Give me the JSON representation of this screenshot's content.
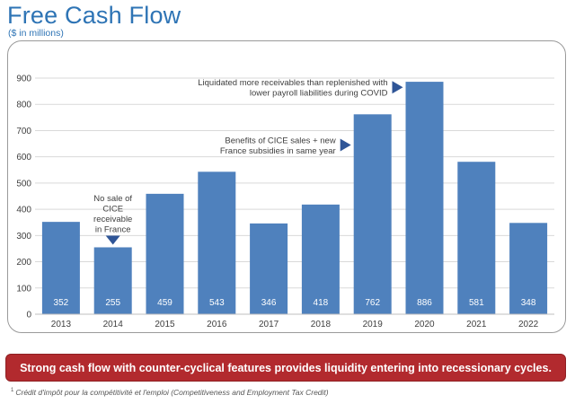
{
  "header": {
    "title": "Free Cash Flow",
    "subtitle": "($ in millions)"
  },
  "chart_data": {
    "type": "bar",
    "categories": [
      "2013",
      "2014",
      "2015",
      "2016",
      "2017",
      "2018",
      "2019",
      "2020",
      "2021",
      "2022"
    ],
    "values": [
      352,
      255,
      459,
      543,
      346,
      418,
      762,
      886,
      581,
      348
    ],
    "data_labels": [
      "352",
      "255",
      "459",
      "543",
      "346",
      "418",
      "762",
      "886",
      "581",
      "348"
    ],
    "y_ticks": [
      "0",
      "100",
      "200",
      "300",
      "400",
      "500",
      "600",
      "700",
      "800",
      "900"
    ],
    "ylim": [
      0,
      900
    ],
    "grid": true,
    "bar_color": "#4f81bd",
    "annotations": [
      {
        "text": [
          "No sale of",
          "CICE",
          "receivable",
          "in France"
        ],
        "target": "2014"
      },
      {
        "text": [
          "Benefits of CICE sales + new",
          "France subsidies in same year"
        ],
        "target": "2019"
      },
      {
        "text": [
          "Liquidated more receivables than replenished with",
          "lower payroll liabilities during COVID"
        ],
        "target": "2020"
      }
    ]
  },
  "banner": {
    "text": "Strong cash flow with counter-cyclical features provides liquidity entering into recessionary cycles."
  },
  "footnote": {
    "marker": "1",
    "text": "Crédit d'impôt pour la compétitivité et l'emploi (Competitiveness and Employment Tax Credit)"
  }
}
